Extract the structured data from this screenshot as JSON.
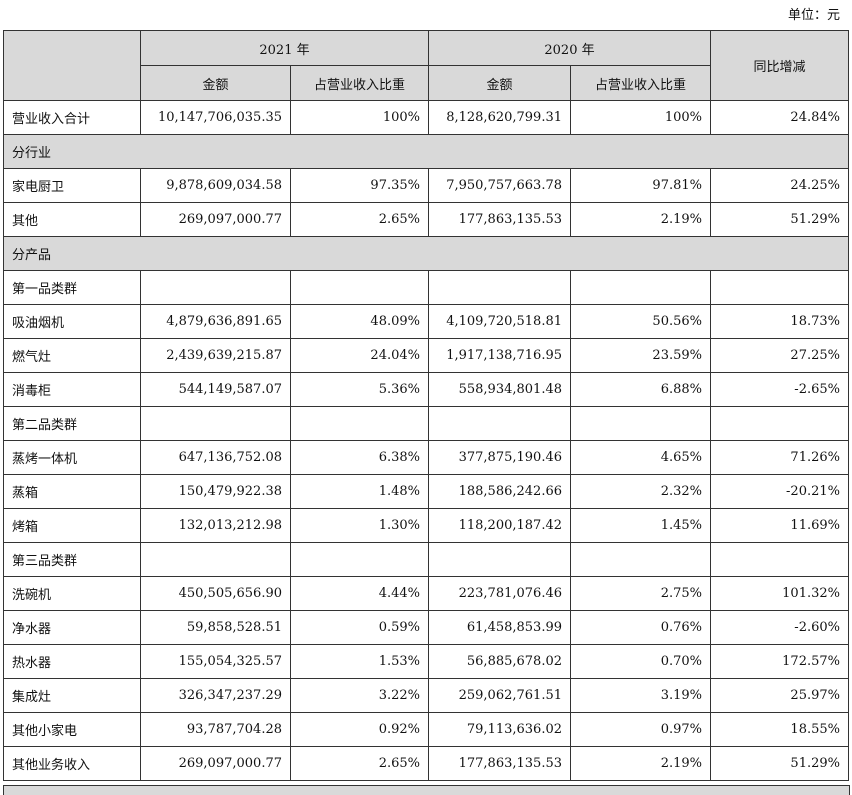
{
  "unit": "单位：元",
  "header": {
    "year_2021": "2021 年",
    "year_2020": "2020 年",
    "amount_2021": "金额",
    "ratio_2021": "占营业收入比重",
    "amount_2020": "金额",
    "ratio_2020": "占营业收入比重",
    "change": "同比增减"
  },
  "rows": [
    {
      "cells": [
        "营业收入合计",
        "10,147,706,035.35",
        "100%",
        "8,128,620,799.31",
        "100%",
        "24.84%"
      ]
    },
    {
      "section": "分行业"
    },
    {
      "cells": [
        "家电厨卫",
        "9,878,609,034.58",
        "97.35%",
        "7,950,757,663.78",
        "97.81%",
        "24.25%"
      ]
    },
    {
      "cells": [
        "其他",
        "269,097,000.77",
        "2.65%",
        "177,863,135.53",
        "2.19%",
        "51.29%"
      ]
    },
    {
      "section": "分产品"
    },
    {
      "group": "第一品类群"
    },
    {
      "cells": [
        "吸油烟机",
        "4,879,636,891.65",
        "48.09%",
        "4,109,720,518.81",
        "50.56%",
        "18.73%"
      ]
    },
    {
      "cells": [
        "燃气灶",
        "2,439,639,215.87",
        "24.04%",
        "1,917,138,716.95",
        "23.59%",
        "27.25%"
      ]
    },
    {
      "cells": [
        "消毒柜",
        "544,149,587.07",
        "5.36%",
        "558,934,801.48",
        "6.88%",
        "-2.65%"
      ]
    },
    {
      "group": "第二品类群"
    },
    {
      "cells": [
        "蒸烤一体机",
        "647,136,752.08",
        "6.38%",
        "377,875,190.46",
        "4.65%",
        "71.26%"
      ]
    },
    {
      "cells": [
        "蒸箱",
        "150,479,922.38",
        "1.48%",
        "188,586,242.66",
        "2.32%",
        "-20.21%"
      ]
    },
    {
      "cells": [
        "烤箱",
        "132,013,212.98",
        "1.30%",
        "118,200,187.42",
        "1.45%",
        "11.69%"
      ]
    },
    {
      "group": "第三品类群"
    },
    {
      "cells": [
        "洗碗机",
        "450,505,656.90",
        "4.44%",
        "223,781,076.46",
        "2.75%",
        "101.32%"
      ]
    },
    {
      "cells": [
        "净水器",
        "59,858,528.51",
        "0.59%",
        "61,458,853.99",
        "0.76%",
        "-2.60%"
      ]
    },
    {
      "cells": [
        "热水器",
        "155,054,325.57",
        "1.53%",
        "56,885,678.02",
        "0.70%",
        "172.57%"
      ]
    },
    {
      "cells": [
        "集成灶",
        "326,347,237.29",
        "3.22%",
        "259,062,761.51",
        "3.19%",
        "25.97%"
      ]
    },
    {
      "cells": [
        "其他小家电",
        "93,787,704.28",
        "0.92%",
        "79,113,636.02",
        "0.97%",
        "18.55%"
      ]
    },
    {
      "cells": [
        "其他业务收入",
        "269,097,000.77",
        "2.65%",
        "177,863,135.53",
        "2.19%",
        "51.29%"
      ]
    }
  ]
}
